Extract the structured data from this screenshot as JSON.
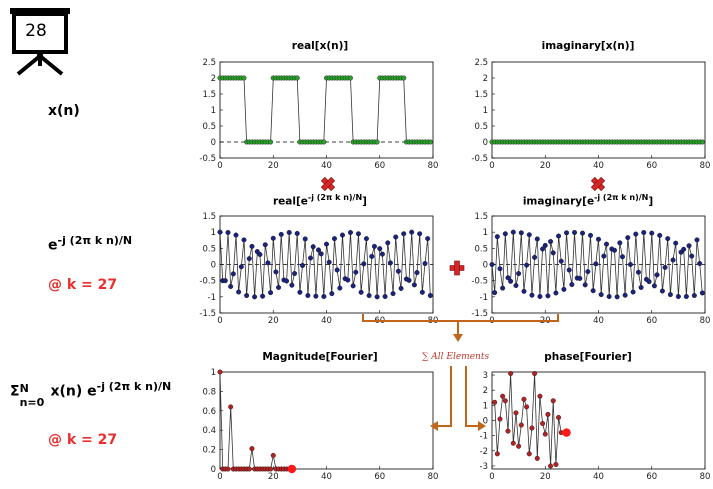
{
  "slide_number": "28",
  "labels": {
    "xn": "x(n)",
    "kernel_base": "e",
    "kernel_exp": "-j (2π k n)/N",
    "k_value_1": "@ k = 27",
    "sum_sigma": "Σ",
    "sum_upper": "N",
    "sum_lower": "n=0",
    "sum_body": " x(n) e",
    "sum_exp": "-j (2π k n)/N",
    "k_value_2": "@ k = 27",
    "sum_all": "∑ All Elements"
  },
  "colors": {
    "green_marker": "#2ca02c",
    "blue_marker": "#1a237e",
    "red_marker": "#b22222",
    "highlight": "#ff1a1a",
    "arrow": "#c0651a",
    "op_symbol": "#d62728"
  },
  "chart_data": [
    {
      "id": "real_x",
      "type": "line",
      "title": "real[x(n)]",
      "xlim": [
        0,
        80
      ],
      "ylim": [
        -0.5,
        2.5
      ],
      "xticks": [
        0,
        20,
        40,
        60,
        80
      ],
      "yticks": [
        -0.5,
        0,
        0.5,
        1,
        1.5,
        2,
        2.5
      ],
      "ytick_labels": [
        "-0.5",
        "0",
        "0.5",
        "1",
        "1.5",
        "2",
        "2.5"
      ],
      "zero_line": true,
      "marker_color": "#2ca02c",
      "series": [
        {
          "x": [
            0,
            1,
            2,
            3,
            4,
            5,
            6,
            7,
            8,
            9,
            10,
            11,
            12,
            13,
            14,
            15,
            16,
            17,
            18,
            19,
            20,
            21,
            22,
            23,
            24,
            25,
            26,
            27,
            28,
            29,
            30,
            31,
            32,
            33,
            34,
            35,
            36,
            37,
            38,
            39,
            40,
            41,
            42,
            43,
            44,
            45,
            46,
            47,
            48,
            49,
            50,
            51,
            52,
            53,
            54,
            55,
            56,
            57,
            58,
            59,
            60,
            61,
            62,
            63,
            64,
            65,
            66,
            67,
            68,
            69,
            70,
            71,
            72,
            73,
            74,
            75,
            76,
            77,
            78,
            79
          ],
          "values": [
            2,
            2,
            2,
            2,
            2,
            2,
            2,
            2,
            2,
            2,
            0,
            0,
            0,
            0,
            0,
            0,
            0,
            0,
            0,
            0,
            2,
            2,
            2,
            2,
            2,
            2,
            2,
            2,
            2,
            2,
            0,
            0,
            0,
            0,
            0,
            0,
            0,
            0,
            0,
            0,
            2,
            2,
            2,
            2,
            2,
            2,
            2,
            2,
            2,
            2,
            0,
            0,
            0,
            0,
            0,
            0,
            0,
            0,
            0,
            0,
            2,
            2,
            2,
            2,
            2,
            2,
            2,
            2,
            2,
            2,
            0,
            0,
            0,
            0,
            0,
            0,
            0,
            0,
            0,
            0
          ]
        }
      ]
    },
    {
      "id": "imag_x",
      "type": "line",
      "title": "imaginary[x(n)]",
      "xlim": [
        0,
        80
      ],
      "ylim": [
        -0.5,
        2.5
      ],
      "xticks": [
        0,
        20,
        40,
        60,
        80
      ],
      "yticks": [
        -0.5,
        0,
        0.5,
        1,
        1.5,
        2,
        2.5
      ],
      "ytick_labels": [
        "-0.5",
        "0",
        "0.5",
        "1",
        "1.5",
        "2",
        "2.5"
      ],
      "zero_line": true,
      "marker_color": "#2ca02c",
      "series": [
        {
          "x": [
            0,
            1,
            2,
            3,
            4,
            5,
            6,
            7,
            8,
            9,
            10,
            11,
            12,
            13,
            14,
            15,
            16,
            17,
            18,
            19,
            20,
            21,
            22,
            23,
            24,
            25,
            26,
            27,
            28,
            29,
            30,
            31,
            32,
            33,
            34,
            35,
            36,
            37,
            38,
            39,
            40,
            41,
            42,
            43,
            44,
            45,
            46,
            47,
            48,
            49,
            50,
            51,
            52,
            53,
            54,
            55,
            56,
            57,
            58,
            59,
            60,
            61,
            62,
            63,
            64,
            65,
            66,
            67,
            68,
            69,
            70,
            71,
            72,
            73,
            74,
            75,
            76,
            77,
            78,
            79
          ],
          "values": [
            0,
            0,
            0,
            0,
            0,
            0,
            0,
            0,
            0,
            0,
            0,
            0,
            0,
            0,
            0,
            0,
            0,
            0,
            0,
            0,
            0,
            0,
            0,
            0,
            0,
            0,
            0,
            0,
            0,
            0,
            0,
            0,
            0,
            0,
            0,
            0,
            0,
            0,
            0,
            0,
            0,
            0,
            0,
            0,
            0,
            0,
            0,
            0,
            0,
            0,
            0,
            0,
            0,
            0,
            0,
            0,
            0,
            0,
            0,
            0,
            0,
            0,
            0,
            0,
            0,
            0,
            0,
            0,
            0,
            0,
            0,
            0,
            0,
            0,
            0,
            0,
            0,
            0,
            0,
            0
          ]
        }
      ]
    },
    {
      "id": "real_kernel",
      "type": "line",
      "title_base": "real[e",
      "title_exp": "-j (2π k n)/N",
      "title_end": "]",
      "xlim": [
        0,
        80
      ],
      "ylim": [
        -1.5,
        1.5
      ],
      "xticks": [
        0,
        20,
        40,
        60,
        80
      ],
      "yticks": [
        -1.5,
        -1,
        -0.5,
        0,
        0.5,
        1,
        1.5
      ],
      "ytick_labels": [
        "-1.5",
        "-1",
        "-0.5",
        "0",
        "0.5",
        "1",
        "1.5"
      ],
      "zero_line": true,
      "marker_color": "#1a237e",
      "series": [
        {
          "x": [
            0,
            1,
            2,
            3,
            4,
            5,
            6,
            7,
            8,
            9,
            10,
            11,
            12,
            13,
            14,
            15,
            16,
            17,
            18,
            19,
            20,
            21,
            22,
            23,
            24,
            25,
            26,
            27,
            28,
            29,
            30,
            31,
            32,
            33,
            34,
            35,
            36,
            37,
            38,
            39,
            40,
            41,
            42,
            43,
            44,
            45,
            46,
            47,
            48,
            49,
            50,
            51,
            52,
            53,
            54,
            55,
            56,
            57,
            58,
            59,
            60,
            61,
            62,
            63,
            64,
            65,
            66,
            67,
            68,
            69,
            70,
            71,
            72,
            73,
            74,
            75,
            76,
            77,
            78,
            79
          ],
          "values": [
            1.0,
            -0.5,
            -0.5,
            0.99,
            -0.68,
            -0.29,
            0.91,
            -0.85,
            -0.07,
            0.76,
            -0.96,
            0.18,
            0.56,
            -1.0,
            0.4,
            0.31,
            -0.98,
            0.61,
            0.05,
            -0.87,
            0.81,
            -0.23,
            -0.71,
            0.93,
            -0.48,
            -0.51,
            0.99,
            -0.64,
            -0.28,
            0.96,
            -0.86,
            -0.03,
            0.79,
            -0.96,
            0.2,
            0.55,
            -0.98,
            0.45,
            0.33,
            -0.99,
            0.63,
            0.07,
            -0.9,
            0.8,
            -0.17,
            -0.73,
            0.91,
            -0.44,
            -0.48,
            0.99,
            -0.66,
            -0.24,
            0.95,
            -0.86,
            0.02,
            0.8,
            -0.96,
            0.25,
            0.56,
            -1.0,
            0.49,
            0.32,
            -0.99,
            0.67,
            0.05,
            -0.9,
            0.85,
            -0.21,
            -0.74,
            0.95,
            -0.45,
            -0.49,
            1.0,
            -0.63,
            -0.25,
            0.95,
            -0.86,
            0.03,
            0.8,
            -0.96
          ]
        }
      ]
    },
    {
      "id": "imag_kernel",
      "type": "line",
      "title_base": "imaginary[e",
      "title_exp": "-j (2π k n)/N",
      "title_end": "]",
      "xlim": [
        0,
        80
      ],
      "ylim": [
        -1.5,
        1.5
      ],
      "xticks": [
        0,
        20,
        40,
        60,
        80
      ],
      "yticks": [
        -1.5,
        -1,
        -0.5,
        0,
        0.5,
        1,
        1.5
      ],
      "ytick_labels": [
        "-1.5",
        "-1",
        "-0.5",
        "0",
        "0.5",
        "1",
        "1.5"
      ],
      "zero_line": true,
      "marker_color": "#1a237e",
      "series": [
        {
          "x": [
            0,
            1,
            2,
            3,
            4,
            5,
            6,
            7,
            8,
            9,
            10,
            11,
            12,
            13,
            14,
            15,
            16,
            17,
            18,
            19,
            20,
            21,
            22,
            23,
            24,
            25,
            26,
            27,
            28,
            29,
            30,
            31,
            32,
            33,
            34,
            35,
            36,
            37,
            38,
            39,
            40,
            41,
            42,
            43,
            44,
            45,
            46,
            47,
            48,
            49,
            50,
            51,
            52,
            53,
            54,
            55,
            56,
            57,
            58,
            59,
            60,
            61,
            62,
            63,
            64,
            65,
            66,
            67,
            68,
            69,
            70,
            71,
            72,
            73,
            74,
            75,
            76,
            77,
            78,
            79
          ],
          "values": [
            0.0,
            -0.87,
            0.86,
            -0.13,
            -0.73,
            0.95,
            -0.41,
            -0.52,
            1.0,
            -0.65,
            -0.28,
            0.98,
            -0.83,
            -0.02,
            0.92,
            -0.95,
            0.22,
            0.79,
            -0.99,
            0.48,
            0.59,
            -0.97,
            0.71,
            0.36,
            -0.88,
            0.88,
            0.1,
            -0.77,
            0.98,
            -0.17,
            -0.62,
            0.99,
            -0.42,
            -0.43,
            0.97,
            -0.63,
            -0.22,
            0.9,
            -0.81,
            0.02,
            0.78,
            -0.93,
            0.26,
            0.63,
            -0.99,
            0.48,
            0.44,
            -1.0,
            0.67,
            0.24,
            -0.95,
            0.83,
            0.0,
            -0.85,
            0.94,
            -0.24,
            -0.71,
            0.99,
            -0.46,
            -0.53,
            0.97,
            -0.66,
            -0.32,
            0.9,
            -0.82,
            -0.09,
            0.8,
            -0.93,
            0.14,
            0.66,
            -0.99,
            0.38,
            0.47,
            -0.99,
            0.58,
            0.26,
            -0.96,
            0.76,
            0.03,
            -0.88
          ]
        }
      ]
    },
    {
      "id": "magnitude",
      "type": "line",
      "title": "Magnitude[Fourier]",
      "xlim": [
        0,
        80
      ],
      "ylim": [
        0,
        1
      ],
      "xticks": [
        0,
        20,
        40,
        60,
        80
      ],
      "yticks": [
        0,
        0.2,
        0.4,
        0.6,
        0.8,
        1
      ],
      "ytick_labels": [
        "0",
        "0.2",
        "0.4",
        "0.6",
        "0.8",
        "1"
      ],
      "zero_line": false,
      "marker_color": "#b22222",
      "highlight": {
        "x": 27,
        "y": 0
      },
      "series": [
        {
          "x": [
            0,
            1,
            2,
            3,
            4,
            5,
            6,
            7,
            8,
            9,
            10,
            11,
            12,
            13,
            14,
            15,
            16,
            17,
            18,
            19,
            20,
            21,
            22,
            23,
            24,
            25,
            26,
            27
          ],
          "values": [
            1.0,
            0,
            0,
            0,
            0.64,
            0,
            0,
            0,
            0,
            0,
            0,
            0,
            0.21,
            0,
            0,
            0,
            0,
            0,
            0,
            0,
            0.14,
            0,
            0,
            0,
            0,
            0,
            0,
            0
          ]
        }
      ]
    },
    {
      "id": "phase",
      "type": "line",
      "title": "phase[Fourier]",
      "xlim": [
        0,
        80
      ],
      "ylim": [
        -3.2,
        3.2
      ],
      "xticks": [
        0,
        20,
        40,
        60,
        80
      ],
      "yticks": [
        -3,
        -2,
        -1,
        0,
        1,
        2,
        3
      ],
      "ytick_labels": [
        "-3",
        "-2",
        "-1",
        "0",
        "1",
        "2",
        "3"
      ],
      "zero_line": false,
      "marker_color": "#b22222",
      "highlight": {
        "x": 28,
        "y": -0.8
      },
      "series": [
        {
          "x": [
            1,
            2,
            3,
            4,
            5,
            6,
            7,
            8,
            9,
            10,
            11,
            12,
            13,
            14,
            15,
            16,
            17,
            18,
            19,
            20,
            21,
            22,
            23,
            24,
            25,
            26
          ],
          "values": [
            1.2,
            -2.2,
            0.1,
            1.6,
            1.3,
            -0.7,
            3.1,
            -1.5,
            0.5,
            -1.7,
            -0.3,
            1.4,
            0.9,
            -2.2,
            -0.5,
            3.1,
            -2.5,
            1.6,
            -0.2,
            -0.9,
            0.4,
            -3.0,
            1.3,
            -2.9,
            0.2,
            -0.8
          ]
        }
      ]
    }
  ]
}
